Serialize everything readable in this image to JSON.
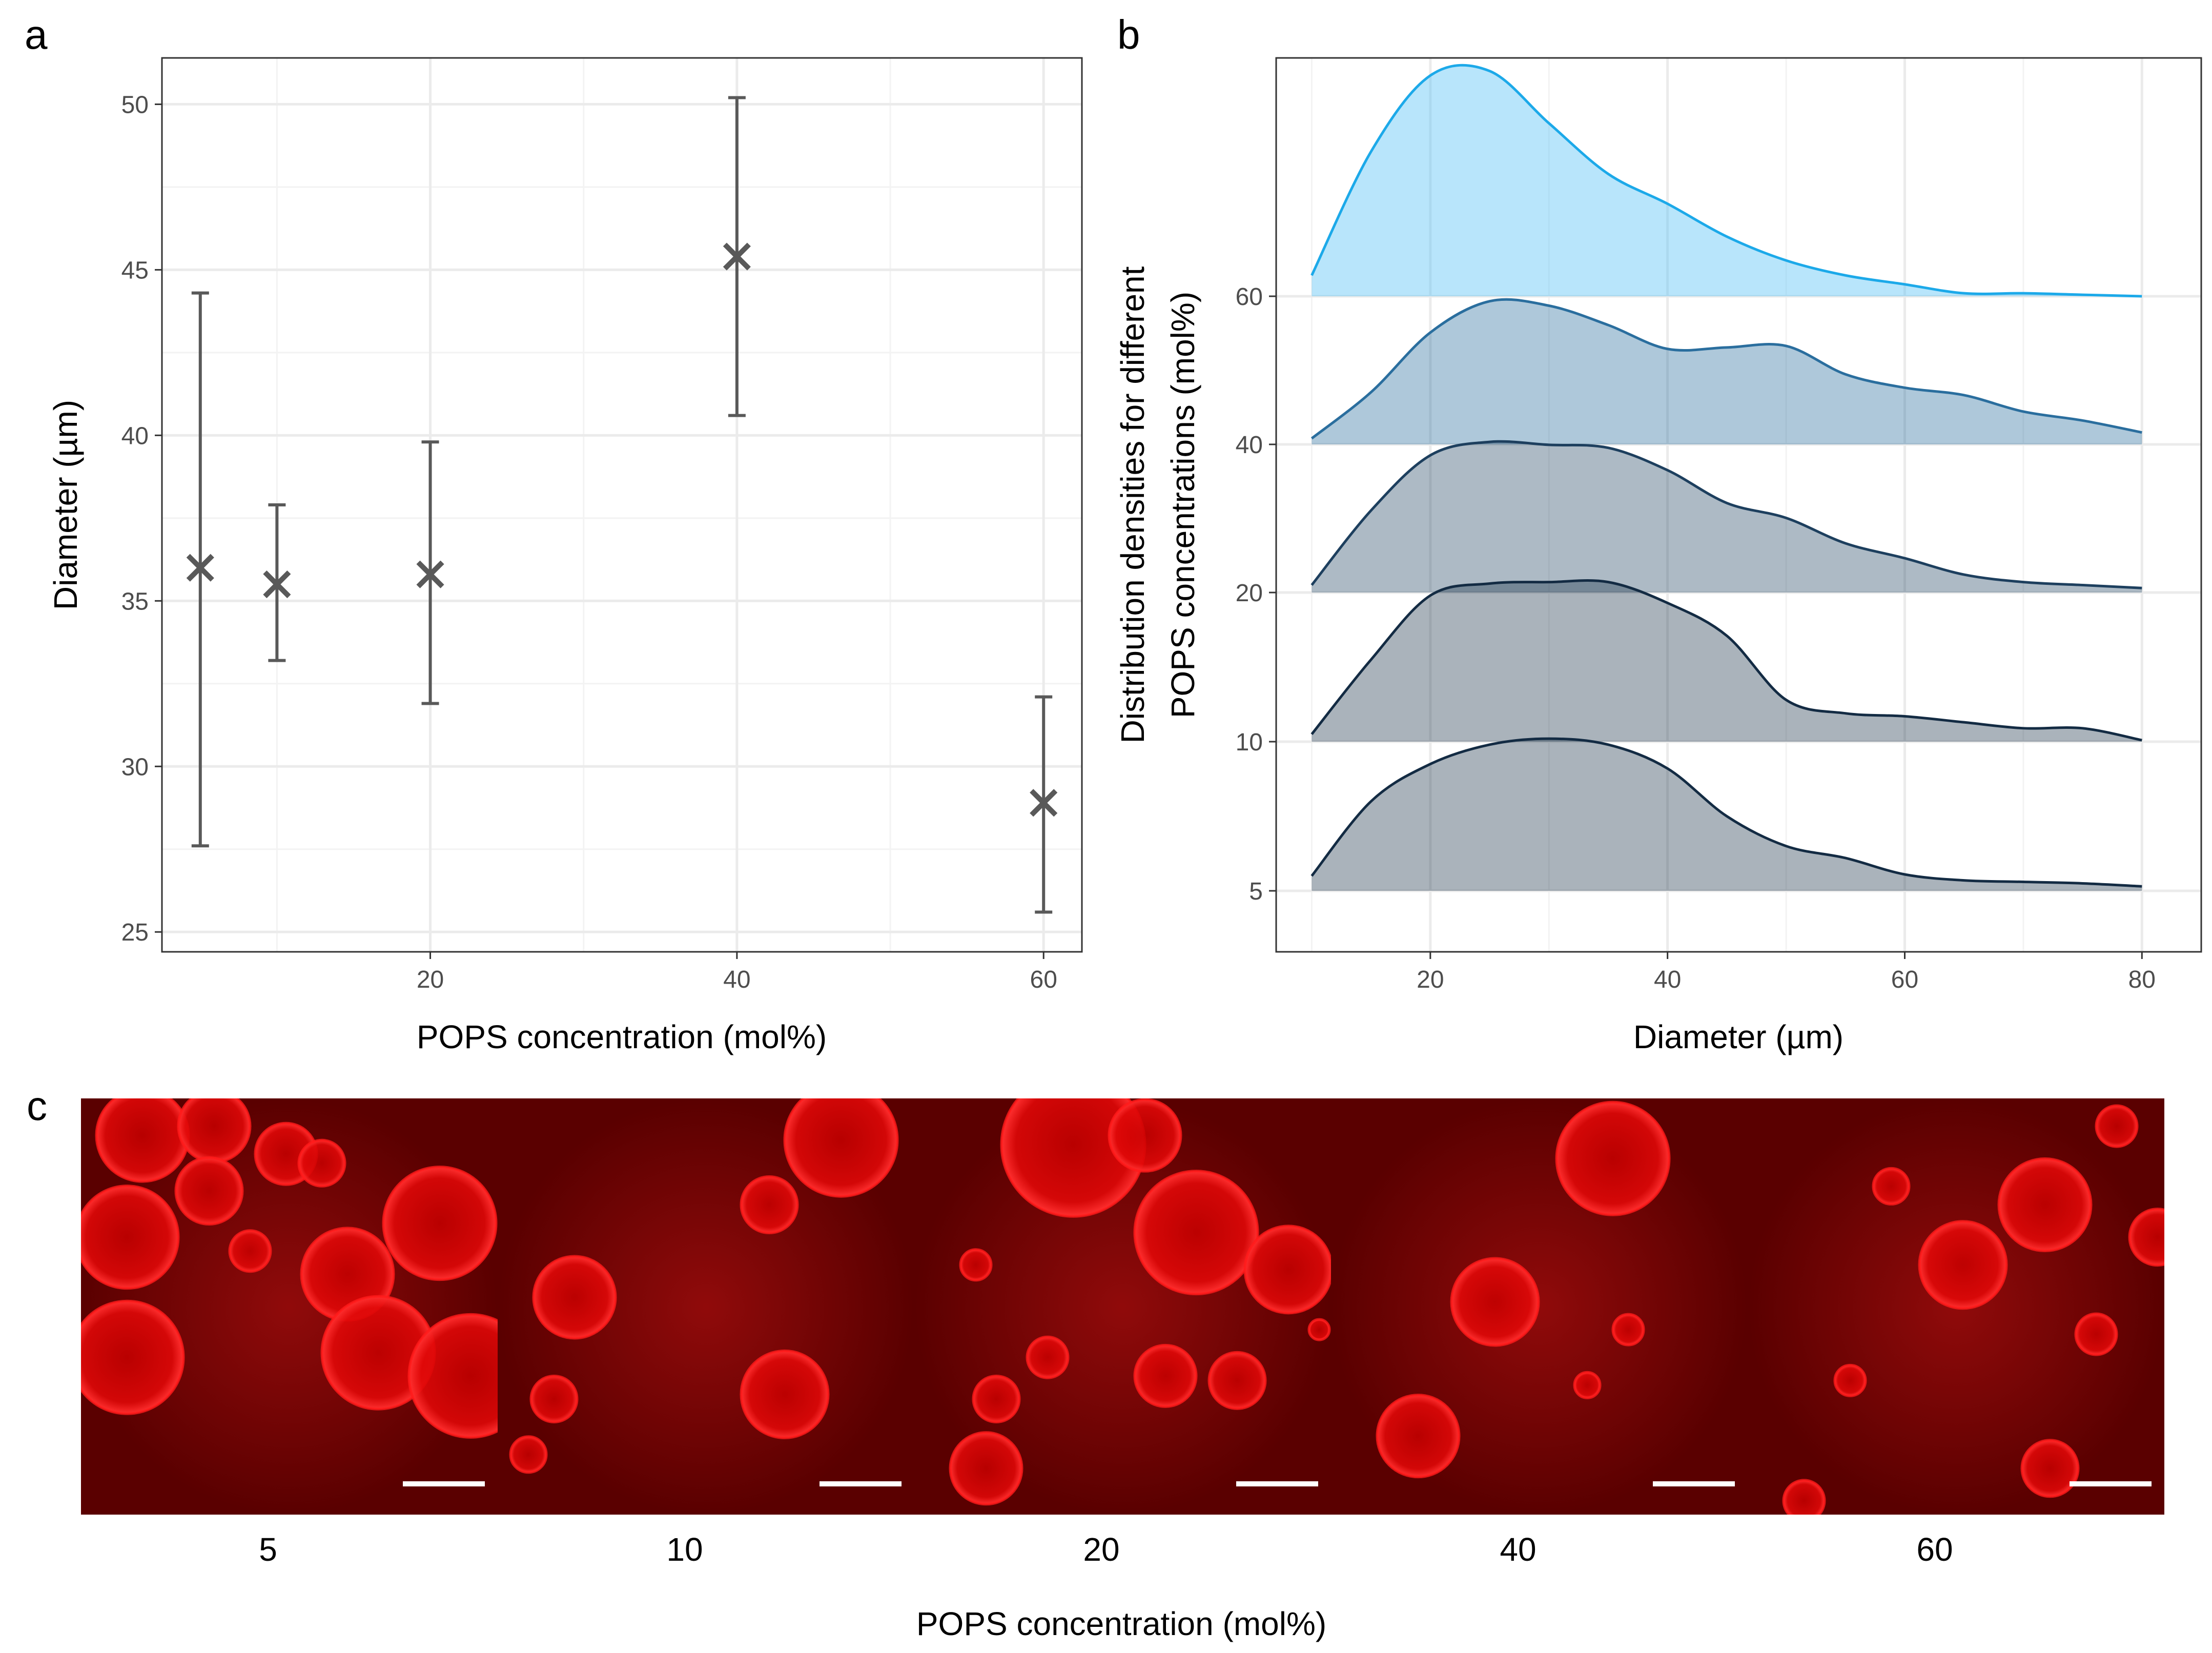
{
  "chart_data": [
    {
      "panel": "a",
      "type": "scatter",
      "title": "",
      "xlabel": "POPS concentration (mol%)",
      "ylabel": "Diameter (µm)",
      "xlim": [
        2.5,
        62.5
      ],
      "ylim": [
        24.4,
        51.4
      ],
      "xticks": [
        20,
        40,
        60
      ],
      "yticks": [
        25,
        30,
        35,
        40,
        45,
        50
      ],
      "points": [
        {
          "x": 5,
          "y": 36.0,
          "ymin": 27.6,
          "ymax": 44.3
        },
        {
          "x": 10,
          "y": 35.5,
          "ymin": 33.2,
          "ymax": 37.9
        },
        {
          "x": 20,
          "y": 35.8,
          "ymin": 31.9,
          "ymax": 39.8
        },
        {
          "x": 40,
          "y": 45.4,
          "ymin": 40.6,
          "ymax": 50.2
        },
        {
          "x": 60,
          "y": 28.9,
          "ymin": 25.6,
          "ymax": 32.1
        }
      ]
    },
    {
      "panel": "b",
      "type": "area",
      "title": "",
      "xlabel": "Diameter (µm)",
      "ylabel_line1": "Distribution densities for different",
      "ylabel_line2": "POPS concentrations (mol%)",
      "xlim": [
        7,
        85
      ],
      "xticks": [
        20,
        40,
        60,
        80
      ],
      "categories": [
        "5",
        "10",
        "20",
        "40",
        "60"
      ],
      "series": [
        {
          "name": "5",
          "color": "#132b43",
          "x": [
            10,
            15,
            20,
            25,
            30,
            35,
            40,
            45,
            50,
            55,
            60,
            65,
            70,
            75,
            80
          ],
          "values": [
            0.1,
            0.6,
            0.85,
            0.98,
            1.02,
            0.98,
            0.82,
            0.5,
            0.3,
            0.22,
            0.11,
            0.07,
            0.06,
            0.05,
            0.03
          ]
        },
        {
          "name": "10",
          "color": "#132b43",
          "x": [
            10,
            15,
            20,
            25,
            30,
            35,
            40,
            45,
            50,
            55,
            60,
            65,
            70,
            75,
            80
          ],
          "values": [
            0.05,
            0.55,
            0.98,
            1.06,
            1.07,
            1.07,
            0.93,
            0.71,
            0.28,
            0.19,
            0.17,
            0.13,
            0.09,
            0.09,
            0.01
          ]
        },
        {
          "name": "20",
          "color": "#1d3f5e",
          "x": [
            10,
            15,
            20,
            25,
            30,
            35,
            40,
            45,
            50,
            55,
            60,
            65,
            70,
            75,
            80
          ],
          "values": [
            0.05,
            0.55,
            0.92,
            1.01,
            0.99,
            0.97,
            0.82,
            0.6,
            0.5,
            0.33,
            0.23,
            0.12,
            0.07,
            0.05,
            0.03
          ]
        },
        {
          "name": "40",
          "color": "#2a6e9e",
          "x": [
            10,
            15,
            20,
            25,
            30,
            35,
            40,
            45,
            50,
            55,
            60,
            65,
            70,
            75,
            80
          ],
          "values": [
            0.04,
            0.35,
            0.75,
            0.96,
            0.93,
            0.8,
            0.64,
            0.65,
            0.66,
            0.47,
            0.38,
            0.33,
            0.22,
            0.16,
            0.08
          ]
        },
        {
          "name": "60",
          "color": "#1ca9e9",
          "x": [
            10,
            15,
            20,
            25,
            30,
            35,
            40,
            45,
            50,
            55,
            60,
            65,
            70,
            75,
            80
          ],
          "values": [
            0.14,
            0.97,
            1.48,
            1.51,
            1.16,
            0.82,
            0.62,
            0.4,
            0.24,
            0.14,
            0.08,
            0.02,
            0.02,
            0.01,
            0.0
          ]
        }
      ]
    },
    {
      "panel": "c",
      "type": "image_strip",
      "xlabel": "POPS concentration (mol%)",
      "labels": [
        "5",
        "10",
        "20",
        "40",
        "60"
      ]
    }
  ],
  "panels": {
    "a": "a",
    "b": "b",
    "c": "c"
  },
  "colors": {
    "image_bg": "#5a0000",
    "vesicle": "#ff1a1a",
    "marker": "#595959"
  }
}
